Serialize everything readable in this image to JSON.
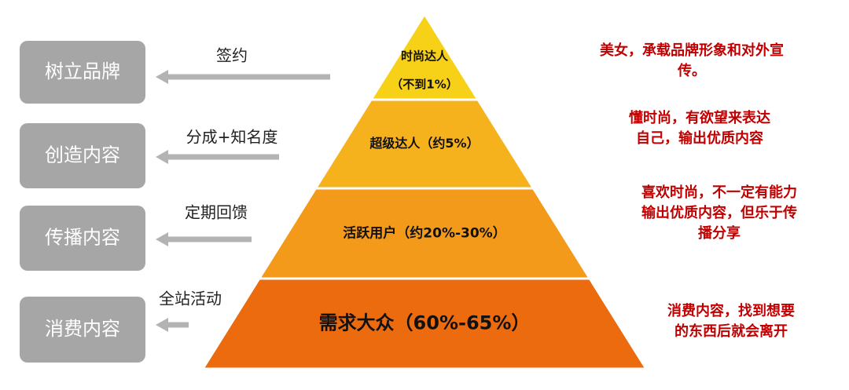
{
  "levels": [
    {
      "role": "树立品牌",
      "action": "签约",
      "tier": [
        "时尚达人",
        "（不到1%）"
      ],
      "description": [
        "美女，承载品牌形象和对外宣",
        "传。"
      ]
    },
    {
      "role": "创造内容",
      "action": "分成+知名度",
      "tier": [
        "超级达人（约5%）"
      ],
      "description": [
        "懂时尚，有欲望来表达",
        "自己，输出优质内容"
      ]
    },
    {
      "role": "传播内容",
      "action": "定期回馈",
      "tier": [
        "活跃用户（约20%-30%）"
      ],
      "description": [
        "喜欢时尚，不一定有能力",
        "输出优质内容，但乐于传",
        "播分享"
      ]
    },
    {
      "role": "消费内容",
      "action": "全站活动",
      "tier": [
        "需求大众（60%-65%）"
      ],
      "description": [
        "消费内容，找到想要",
        "的东西后就会离开"
      ]
    }
  ]
}
